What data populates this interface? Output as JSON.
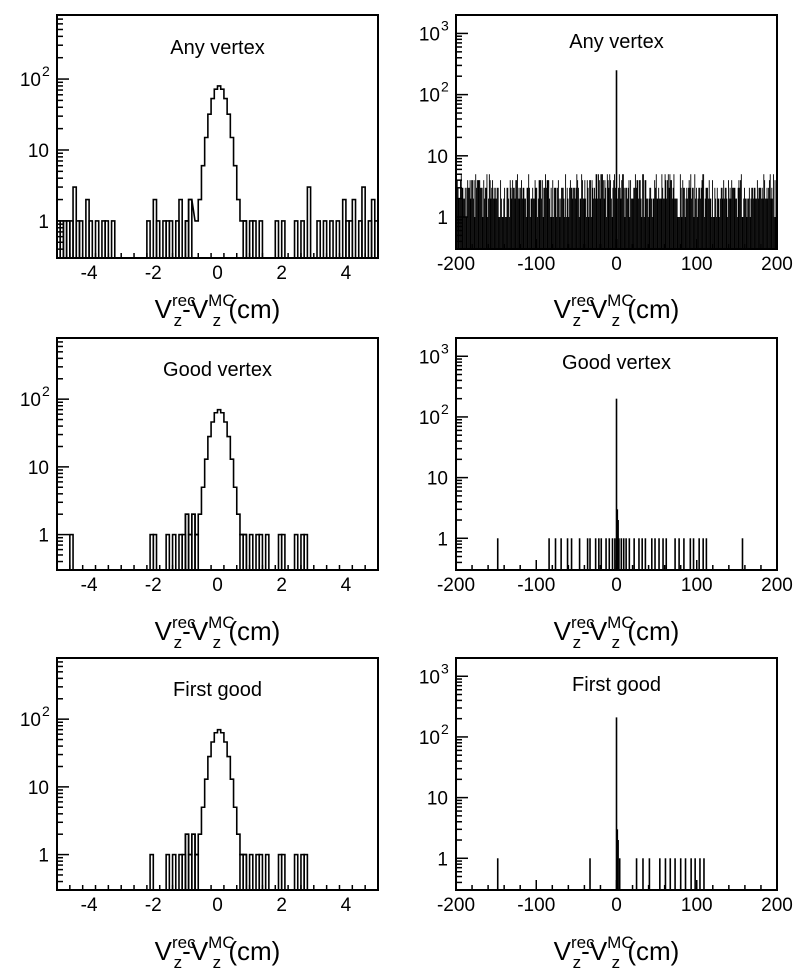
{
  "figure": {
    "rows": [
      "any-vertex",
      "good-vertex",
      "first-good"
    ]
  },
  "chart_data": [
    {
      "id": "any-vertex-narrow",
      "type": "histogram",
      "title": "Any vertex",
      "xlabel": {
        "v": "V",
        "sup1": "rec",
        "sub1": "z",
        "dash": "-",
        "sup2": "MC",
        "sub2": "z",
        "unit": " (cm)"
      },
      "xlim": [
        -5,
        5
      ],
      "ylim": [
        0.3,
        800
      ],
      "yscale": "log",
      "xticks": [
        -4,
        -2,
        0,
        2,
        4
      ],
      "yticks": [
        {
          "value": 1,
          "label": "1"
        },
        {
          "value": 10,
          "label": "10"
        },
        {
          "value": 100,
          "base": "10",
          "exp": "2"
        }
      ],
      "bin_width": 0.1,
      "peak": {
        "center": 0.05,
        "sigma": 0.22,
        "height": 80
      },
      "sparse_bins": [
        {
          "x": -4.95,
          "y": 1
        },
        {
          "x": -4.85,
          "y": 1
        },
        {
          "x": -4.75,
          "y": 1
        },
        {
          "x": -4.65,
          "y": 1
        },
        {
          "x": -4.55,
          "y": 1
        },
        {
          "x": -4.45,
          "y": 3
        },
        {
          "x": -4.35,
          "y": 1
        },
        {
          "x": -4.25,
          "y": 1
        },
        {
          "x": -4.05,
          "y": 2
        },
        {
          "x": -3.95,
          "y": 1
        },
        {
          "x": -3.75,
          "y": 1
        },
        {
          "x": -3.55,
          "y": 1
        },
        {
          "x": -3.45,
          "y": 1
        },
        {
          "x": -3.25,
          "y": 1
        },
        {
          "x": -2.15,
          "y": 1
        },
        {
          "x": -1.95,
          "y": 2
        },
        {
          "x": -1.85,
          "y": 1
        },
        {
          "x": -1.65,
          "y": 1
        },
        {
          "x": -1.55,
          "y": 1
        },
        {
          "x": -1.45,
          "y": 1
        },
        {
          "x": -1.25,
          "y": 1
        },
        {
          "x": -1.15,
          "y": 2
        },
        {
          "x": -0.95,
          "y": 1
        },
        {
          "x": -0.85,
          "y": 2
        },
        {
          "x": 0.85,
          "y": 1
        },
        {
          "x": 1.05,
          "y": 1
        },
        {
          "x": 1.15,
          "y": 1
        },
        {
          "x": 1.35,
          "y": 1
        },
        {
          "x": 1.85,
          "y": 1
        },
        {
          "x": 2.05,
          "y": 1
        },
        {
          "x": 2.45,
          "y": 1
        },
        {
          "x": 2.65,
          "y": 1
        },
        {
          "x": 2.85,
          "y": 3
        },
        {
          "x": 3.15,
          "y": 1
        },
        {
          "x": 3.35,
          "y": 1
        },
        {
          "x": 3.55,
          "y": 1
        },
        {
          "x": 3.75,
          "y": 1
        },
        {
          "x": 3.95,
          "y": 2
        },
        {
          "x": 4.05,
          "y": 1
        },
        {
          "x": 4.15,
          "y": 1
        },
        {
          "x": 4.25,
          "y": 2
        },
        {
          "x": 4.45,
          "y": 1
        },
        {
          "x": 4.55,
          "y": 3
        },
        {
          "x": 4.75,
          "y": 1
        },
        {
          "x": 4.85,
          "y": 2
        },
        {
          "x": 4.95,
          "y": 1
        }
      ]
    },
    {
      "id": "any-vertex-wide",
      "type": "histogram",
      "title": "Any vertex",
      "xlabel": {
        "v": "V",
        "sup1": "rec",
        "sub1": "z",
        "dash": "-",
        "sup2": "MC",
        "sub2": "z",
        "unit": " (cm)"
      },
      "xlim": [
        -200,
        200
      ],
      "ylim": [
        0.3,
        2000
      ],
      "yscale": "log",
      "xticks": [
        -200,
        -100,
        0,
        100,
        200
      ],
      "yticks": [
        {
          "value": 1,
          "label": "1"
        },
        {
          "value": 10,
          "label": "10"
        },
        {
          "value": 100,
          "base": "10",
          "exp": "2"
        },
        {
          "value": 1000,
          "base": "10",
          "exp": "3"
        }
      ],
      "bin_width": 1,
      "peak": {
        "center": 0,
        "value": 250
      },
      "background": {
        "min": 1,
        "max": 5,
        "fill": "dense"
      }
    },
    {
      "id": "good-vertex-narrow",
      "type": "histogram",
      "title": "Good vertex",
      "xlabel": {
        "v": "V",
        "sup1": "rec",
        "sub1": "z",
        "dash": "-",
        "sup2": "MC",
        "sub2": "z",
        "unit": " (cm)"
      },
      "xlim": [
        -5,
        5
      ],
      "ylim": [
        0.3,
        800
      ],
      "yscale": "log",
      "xticks": [
        -4,
        -2,
        0,
        2,
        4
      ],
      "yticks": [
        {
          "value": 1,
          "label": "1"
        },
        {
          "value": 10,
          "label": "10"
        },
        {
          "value": 100,
          "base": "10",
          "exp": "2"
        }
      ],
      "bin_width": 0.1,
      "peak": {
        "center": 0.05,
        "sigma": 0.22,
        "height": 70
      },
      "sparse_bins": [
        {
          "x": -4.55,
          "y": 1
        },
        {
          "x": -2.05,
          "y": 1
        },
        {
          "x": -1.95,
          "y": 1
        },
        {
          "x": -1.55,
          "y": 1
        },
        {
          "x": -1.35,
          "y": 1
        },
        {
          "x": -1.15,
          "y": 1
        },
        {
          "x": -1.05,
          "y": 1
        },
        {
          "x": -0.95,
          "y": 2
        },
        {
          "x": -0.85,
          "y": 1
        },
        {
          "x": -0.75,
          "y": 2
        },
        {
          "x": -0.65,
          "y": 1
        },
        {
          "x": 0.75,
          "y": 1
        },
        {
          "x": 0.85,
          "y": 1
        },
        {
          "x": 1.05,
          "y": 1
        },
        {
          "x": 1.25,
          "y": 1
        },
        {
          "x": 1.35,
          "y": 1
        },
        {
          "x": 1.55,
          "y": 1
        },
        {
          "x": 1.95,
          "y": 1
        },
        {
          "x": 2.05,
          "y": 1
        },
        {
          "x": 2.45,
          "y": 1
        },
        {
          "x": 2.65,
          "y": 1
        },
        {
          "x": 2.75,
          "y": 1
        }
      ]
    },
    {
      "id": "good-vertex-wide",
      "type": "histogram",
      "title": "Good vertex",
      "xlabel": {
        "v": "V",
        "sup1": "rec",
        "sub1": "z",
        "dash": "-",
        "sup2": "MC",
        "sub2": "z",
        "unit": " (cm)"
      },
      "xlim": [
        -200,
        200
      ],
      "ylim": [
        0.3,
        2000
      ],
      "yscale": "log",
      "xticks": [
        -200,
        -100,
        0,
        100,
        200
      ],
      "yticks": [
        {
          "value": 1,
          "label": "1"
        },
        {
          "value": 10,
          "label": "10"
        },
        {
          "value": 100,
          "base": "10",
          "exp": "2"
        },
        {
          "value": 1000,
          "base": "10",
          "exp": "3"
        }
      ],
      "bin_width": 1,
      "peak": {
        "center": 0,
        "value": 200
      },
      "sparse_bins": [
        {
          "x": -148,
          "y": 1
        },
        {
          "x": -84,
          "y": 1
        },
        {
          "x": -76,
          "y": 1
        },
        {
          "x": -69,
          "y": 1
        },
        {
          "x": -61,
          "y": 1
        },
        {
          "x": -56,
          "y": 1
        },
        {
          "x": -46,
          "y": 1
        },
        {
          "x": -36,
          "y": 1
        },
        {
          "x": -33,
          "y": 1
        },
        {
          "x": -26,
          "y": 1
        },
        {
          "x": -22,
          "y": 1
        },
        {
          "x": -19,
          "y": 1
        },
        {
          "x": -13,
          "y": 1
        },
        {
          "x": -9,
          "y": 1
        },
        {
          "x": -5,
          "y": 1
        },
        {
          "x": -2,
          "y": 1
        },
        {
          "x": 1,
          "y": 3
        },
        {
          "x": 2,
          "y": 2
        },
        {
          "x": 3,
          "y": 1
        },
        {
          "x": 6,
          "y": 1
        },
        {
          "x": 9,
          "y": 1
        },
        {
          "x": 12,
          "y": 1
        },
        {
          "x": 16,
          "y": 1
        },
        {
          "x": 22,
          "y": 1
        },
        {
          "x": 28,
          "y": 1
        },
        {
          "x": 32,
          "y": 1
        },
        {
          "x": 36,
          "y": 1
        },
        {
          "x": 44,
          "y": 1
        },
        {
          "x": 48,
          "y": 1
        },
        {
          "x": 53,
          "y": 1
        },
        {
          "x": 58,
          "y": 1
        },
        {
          "x": 62,
          "y": 1
        },
        {
          "x": 73,
          "y": 1
        },
        {
          "x": 78,
          "y": 1
        },
        {
          "x": 84,
          "y": 1
        },
        {
          "x": 92,
          "y": 1
        },
        {
          "x": 96,
          "y": 1
        },
        {
          "x": 103,
          "y": 1
        },
        {
          "x": 108,
          "y": 1
        },
        {
          "x": 112,
          "y": 1
        },
        {
          "x": 157,
          "y": 1
        }
      ]
    },
    {
      "id": "first-good-narrow",
      "type": "histogram",
      "title": "First good",
      "xlabel": {
        "v": "V",
        "sup1": "rec",
        "sub1": "z",
        "dash": "-",
        "sup2": "MC",
        "sub2": "z",
        "unit": " (cm)"
      },
      "xlim": [
        -5,
        5
      ],
      "ylim": [
        0.3,
        800
      ],
      "yscale": "log",
      "xticks": [
        -4,
        -2,
        0,
        2,
        4
      ],
      "yticks": [
        {
          "value": 1,
          "label": "1"
        },
        {
          "value": 10,
          "label": "10"
        },
        {
          "value": 100,
          "base": "10",
          "exp": "2"
        }
      ],
      "bin_width": 0.1,
      "peak": {
        "center": 0.05,
        "sigma": 0.22,
        "height": 70
      },
      "sparse_bins": [
        {
          "x": -2.05,
          "y": 1
        },
        {
          "x": -1.55,
          "y": 1
        },
        {
          "x": -1.35,
          "y": 1
        },
        {
          "x": -1.15,
          "y": 1
        },
        {
          "x": -1.05,
          "y": 1
        },
        {
          "x": -0.95,
          "y": 2
        },
        {
          "x": -0.85,
          "y": 1
        },
        {
          "x": -0.75,
          "y": 2
        },
        {
          "x": -0.65,
          "y": 1
        },
        {
          "x": 0.75,
          "y": 1
        },
        {
          "x": 0.85,
          "y": 1
        },
        {
          "x": 1.05,
          "y": 1
        },
        {
          "x": 1.25,
          "y": 1
        },
        {
          "x": 1.35,
          "y": 1
        },
        {
          "x": 1.55,
          "y": 1
        },
        {
          "x": 1.95,
          "y": 1
        },
        {
          "x": 2.05,
          "y": 1
        },
        {
          "x": 2.45,
          "y": 1
        },
        {
          "x": 2.65,
          "y": 1
        },
        {
          "x": 2.75,
          "y": 1
        }
      ]
    },
    {
      "id": "first-good-wide",
      "type": "histogram",
      "title": "First good",
      "xlabel": {
        "v": "V",
        "sup1": "rec",
        "sub1": "z",
        "dash": "-",
        "sup2": "MC",
        "sub2": "z",
        "unit": " (cm)"
      },
      "xlim": [
        -200,
        200
      ],
      "ylim": [
        0.3,
        2000
      ],
      "yscale": "log",
      "xticks": [
        -200,
        -100,
        0,
        100,
        200
      ],
      "yticks": [
        {
          "value": 1,
          "label": "1"
        },
        {
          "value": 10,
          "label": "10"
        },
        {
          "value": 100,
          "base": "10",
          "exp": "2"
        },
        {
          "value": 1000,
          "base": "10",
          "exp": "3"
        }
      ],
      "bin_width": 1,
      "peak": {
        "center": 0,
        "value": 210
      },
      "sparse_bins": [
        {
          "x": -148,
          "y": 1
        },
        {
          "x": -33,
          "y": 1
        },
        {
          "x": 1,
          "y": 3
        },
        {
          "x": 2,
          "y": 2
        },
        {
          "x": 4,
          "y": 1
        },
        {
          "x": 25,
          "y": 1
        },
        {
          "x": 33,
          "y": 1
        },
        {
          "x": 41,
          "y": 1
        },
        {
          "x": 54,
          "y": 1
        },
        {
          "x": 61,
          "y": 1
        },
        {
          "x": 67,
          "y": 1
        },
        {
          "x": 73,
          "y": 1
        },
        {
          "x": 80,
          "y": 1
        },
        {
          "x": 86,
          "y": 1
        },
        {
          "x": 93,
          "y": 1
        },
        {
          "x": 98,
          "y": 1
        },
        {
          "x": 104,
          "y": 1
        },
        {
          "x": 109,
          "y": 1
        }
      ]
    }
  ]
}
